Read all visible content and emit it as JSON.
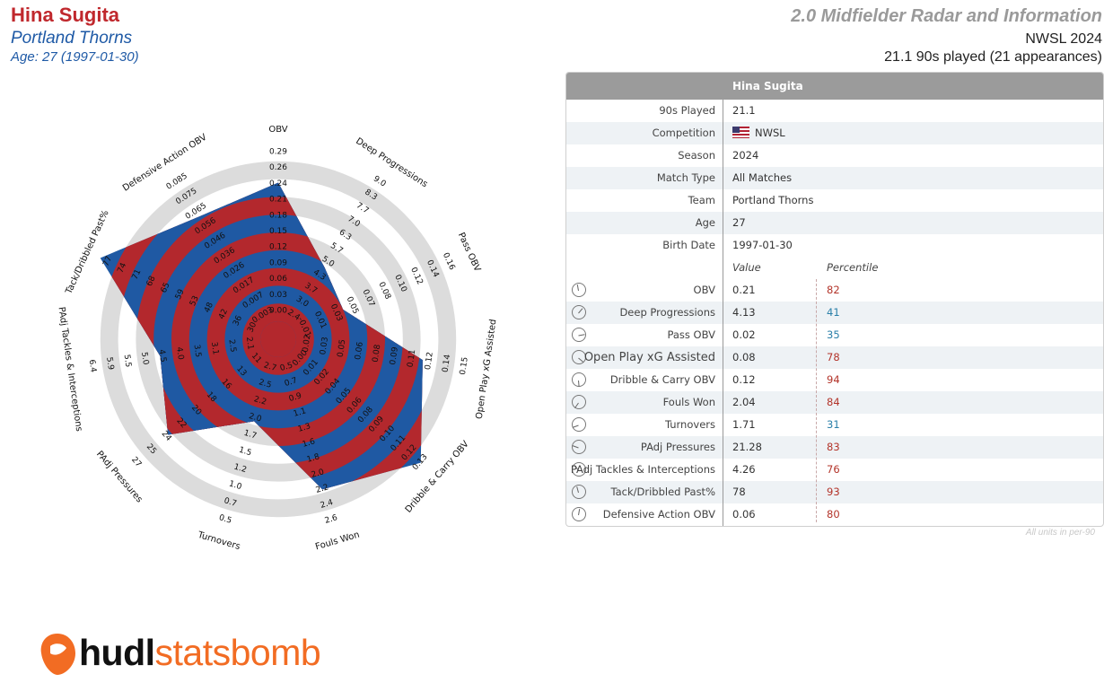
{
  "header": {
    "player": "Hina Sugita",
    "team": "Portland Thorns",
    "age_line": "Age: 27 (1997-01-30)",
    "radar_title": "2.0 Midfielder Radar and Information",
    "competition_line": "NWSL 2024",
    "played_line": "21.1 90s played (21 appearances)"
  },
  "colors": {
    "red": "#b3282d",
    "blue": "#1f59a3",
    "ring_grey": "#dcdcdc",
    "pct_high": "#b3342a",
    "pct_low": "#2a7fa8",
    "logo_orange": "#f26c23"
  },
  "chart_data": {
    "type": "radar",
    "metrics": [
      {
        "name": "OBV",
        "ticks": [
          "0.00",
          "0.03",
          "0.06",
          "0.09",
          "0.12",
          "0.15",
          "0.18",
          "0.21",
          "0.24",
          "0.26",
          "0.29"
        ],
        "value": 0.21,
        "percentile": 82
      },
      {
        "name": "Deep Progressions",
        "ticks": [
          "2.4",
          "3.0",
          "3.7",
          "4.3",
          "5.0",
          "5.7",
          "6.3",
          "7.0",
          "7.7",
          "8.3",
          "9.0"
        ],
        "value": 4.13,
        "percentile": 41
      },
      {
        "name": "Pass OBV",
        "ticks": [
          "-0.01",
          "0.01",
          "0.03",
          "0.05",
          "0.07",
          "0.08",
          "0.10",
          "0.12",
          "0.14",
          "0.16"
        ],
        "value": 0.02,
        "percentile": 35
      },
      {
        "name": "Open Play xG Assisted",
        "ticks": [
          "0.02",
          "0.03",
          "0.05",
          "0.06",
          "0.08",
          "0.09",
          "0.11",
          "0.12",
          "0.14",
          "0.15"
        ],
        "value": 0.08,
        "percentile": 78
      },
      {
        "name": "Dribble & Carry OBV",
        "ticks": [
          "0.00",
          "0.01",
          "0.02",
          "0.04",
          "0.05",
          "0.06",
          "0.08",
          "0.09",
          "0.10",
          "0.11",
          "0.12",
          "0.13"
        ],
        "value": 0.12,
        "percentile": 94
      },
      {
        "name": "Fouls Won",
        "ticks": [
          "0.5",
          "0.7",
          "0.9",
          "1.1",
          "1.3",
          "1.6",
          "1.8",
          "2.0",
          "2.2",
          "2.4",
          "2.6"
        ],
        "value": 2.04,
        "percentile": 84
      },
      {
        "name": "Turnovers",
        "ticks": [
          "2.7",
          "2.5",
          "2.2",
          "2.0",
          "1.7",
          "1.5",
          "1.2",
          "1.0",
          "0.7",
          "0.5"
        ],
        "value": 1.71,
        "percentile": 31
      },
      {
        "name": "PAdj Pressures",
        "ticks": [
          "11",
          "13",
          "16",
          "18",
          "20",
          "22",
          "24",
          "25",
          "27"
        ],
        "value": 21.28,
        "percentile": 83
      },
      {
        "name": "PAdj Tackles & Interceptions",
        "ticks": [
          "2.1",
          "2.5",
          "3.1",
          "3.5",
          "4.0",
          "4.5",
          "5.0",
          "5.5",
          "5.9",
          "6.4"
        ],
        "value": 4.26,
        "percentile": 76
      },
      {
        "name": "Tack/Dribbled Past%",
        "ticks": [
          "30",
          "36",
          "42",
          "48",
          "53",
          "59",
          "65",
          "68",
          "71",
          "74",
          "77"
        ],
        "value": 78,
        "percentile": 93
      },
      {
        "name": "Defensive Action OBV",
        "ticks": [
          "0.003",
          "0.007",
          "0.017",
          "0.026",
          "0.036",
          "0.046",
          "0.056",
          "0.065",
          "0.075",
          "0.085"
        ],
        "value": 0.06,
        "percentile": 80
      }
    ],
    "polygon_fraction": [
      0.78,
      0.38,
      0.3,
      0.72,
      0.96,
      0.78,
      0.38,
      0.72,
      0.57,
      1.0,
      0.72
    ]
  },
  "info_table": {
    "header_name": "Hina Sugita",
    "details": [
      {
        "label": "90s Played",
        "value": "21.1"
      },
      {
        "label": "Competition",
        "value": "NWSL",
        "flag": true
      },
      {
        "label": "Season",
        "value": "2024"
      },
      {
        "label": "Match Type",
        "value": "All Matches"
      },
      {
        "label": "Team",
        "value": "Portland Thorns"
      },
      {
        "label": "Age",
        "value": "27"
      },
      {
        "label": "Birth Date",
        "value": "1997-01-30"
      }
    ],
    "col_value": "Value",
    "col_percentile": "Percentile",
    "stats": [
      {
        "label": "OBV",
        "value": "0.21",
        "pct": "82",
        "icon": "gauge-icon"
      },
      {
        "label": "Deep Progressions",
        "value": "4.13",
        "pct": "41",
        "icon": "gauge-icon"
      },
      {
        "label": "Pass OBV",
        "value": "0.02",
        "pct": "35",
        "icon": "gauge-icon"
      },
      {
        "label": "Open Play xG Assisted",
        "value": "0.08",
        "pct": "78",
        "icon": "gauge-icon"
      },
      {
        "label": "Dribble & Carry OBV",
        "value": "0.12",
        "pct": "94",
        "icon": "gauge-icon"
      },
      {
        "label": "Fouls Won",
        "value": "2.04",
        "pct": "84",
        "icon": "gauge-icon"
      },
      {
        "label": "Turnovers",
        "value": "1.71",
        "pct": "31",
        "icon": "gauge-icon"
      },
      {
        "label": "PAdj Pressures",
        "value": "21.28",
        "pct": "83",
        "icon": "gauge-icon"
      },
      {
        "label": "PAdj Tackles & Interceptions",
        "value": "4.26",
        "pct": "76",
        "icon": "gauge-icon"
      },
      {
        "label": "Tack/Dribbled Past%",
        "value": "78",
        "pct": "93",
        "icon": "gauge-icon"
      },
      {
        "label": "Defensive Action OBV",
        "value": "0.06",
        "pct": "80",
        "icon": "gauge-icon"
      }
    ],
    "footnote": "All units in per-90"
  },
  "logo": {
    "hudl": "hudl",
    "statsbomb": "statsbomb"
  }
}
